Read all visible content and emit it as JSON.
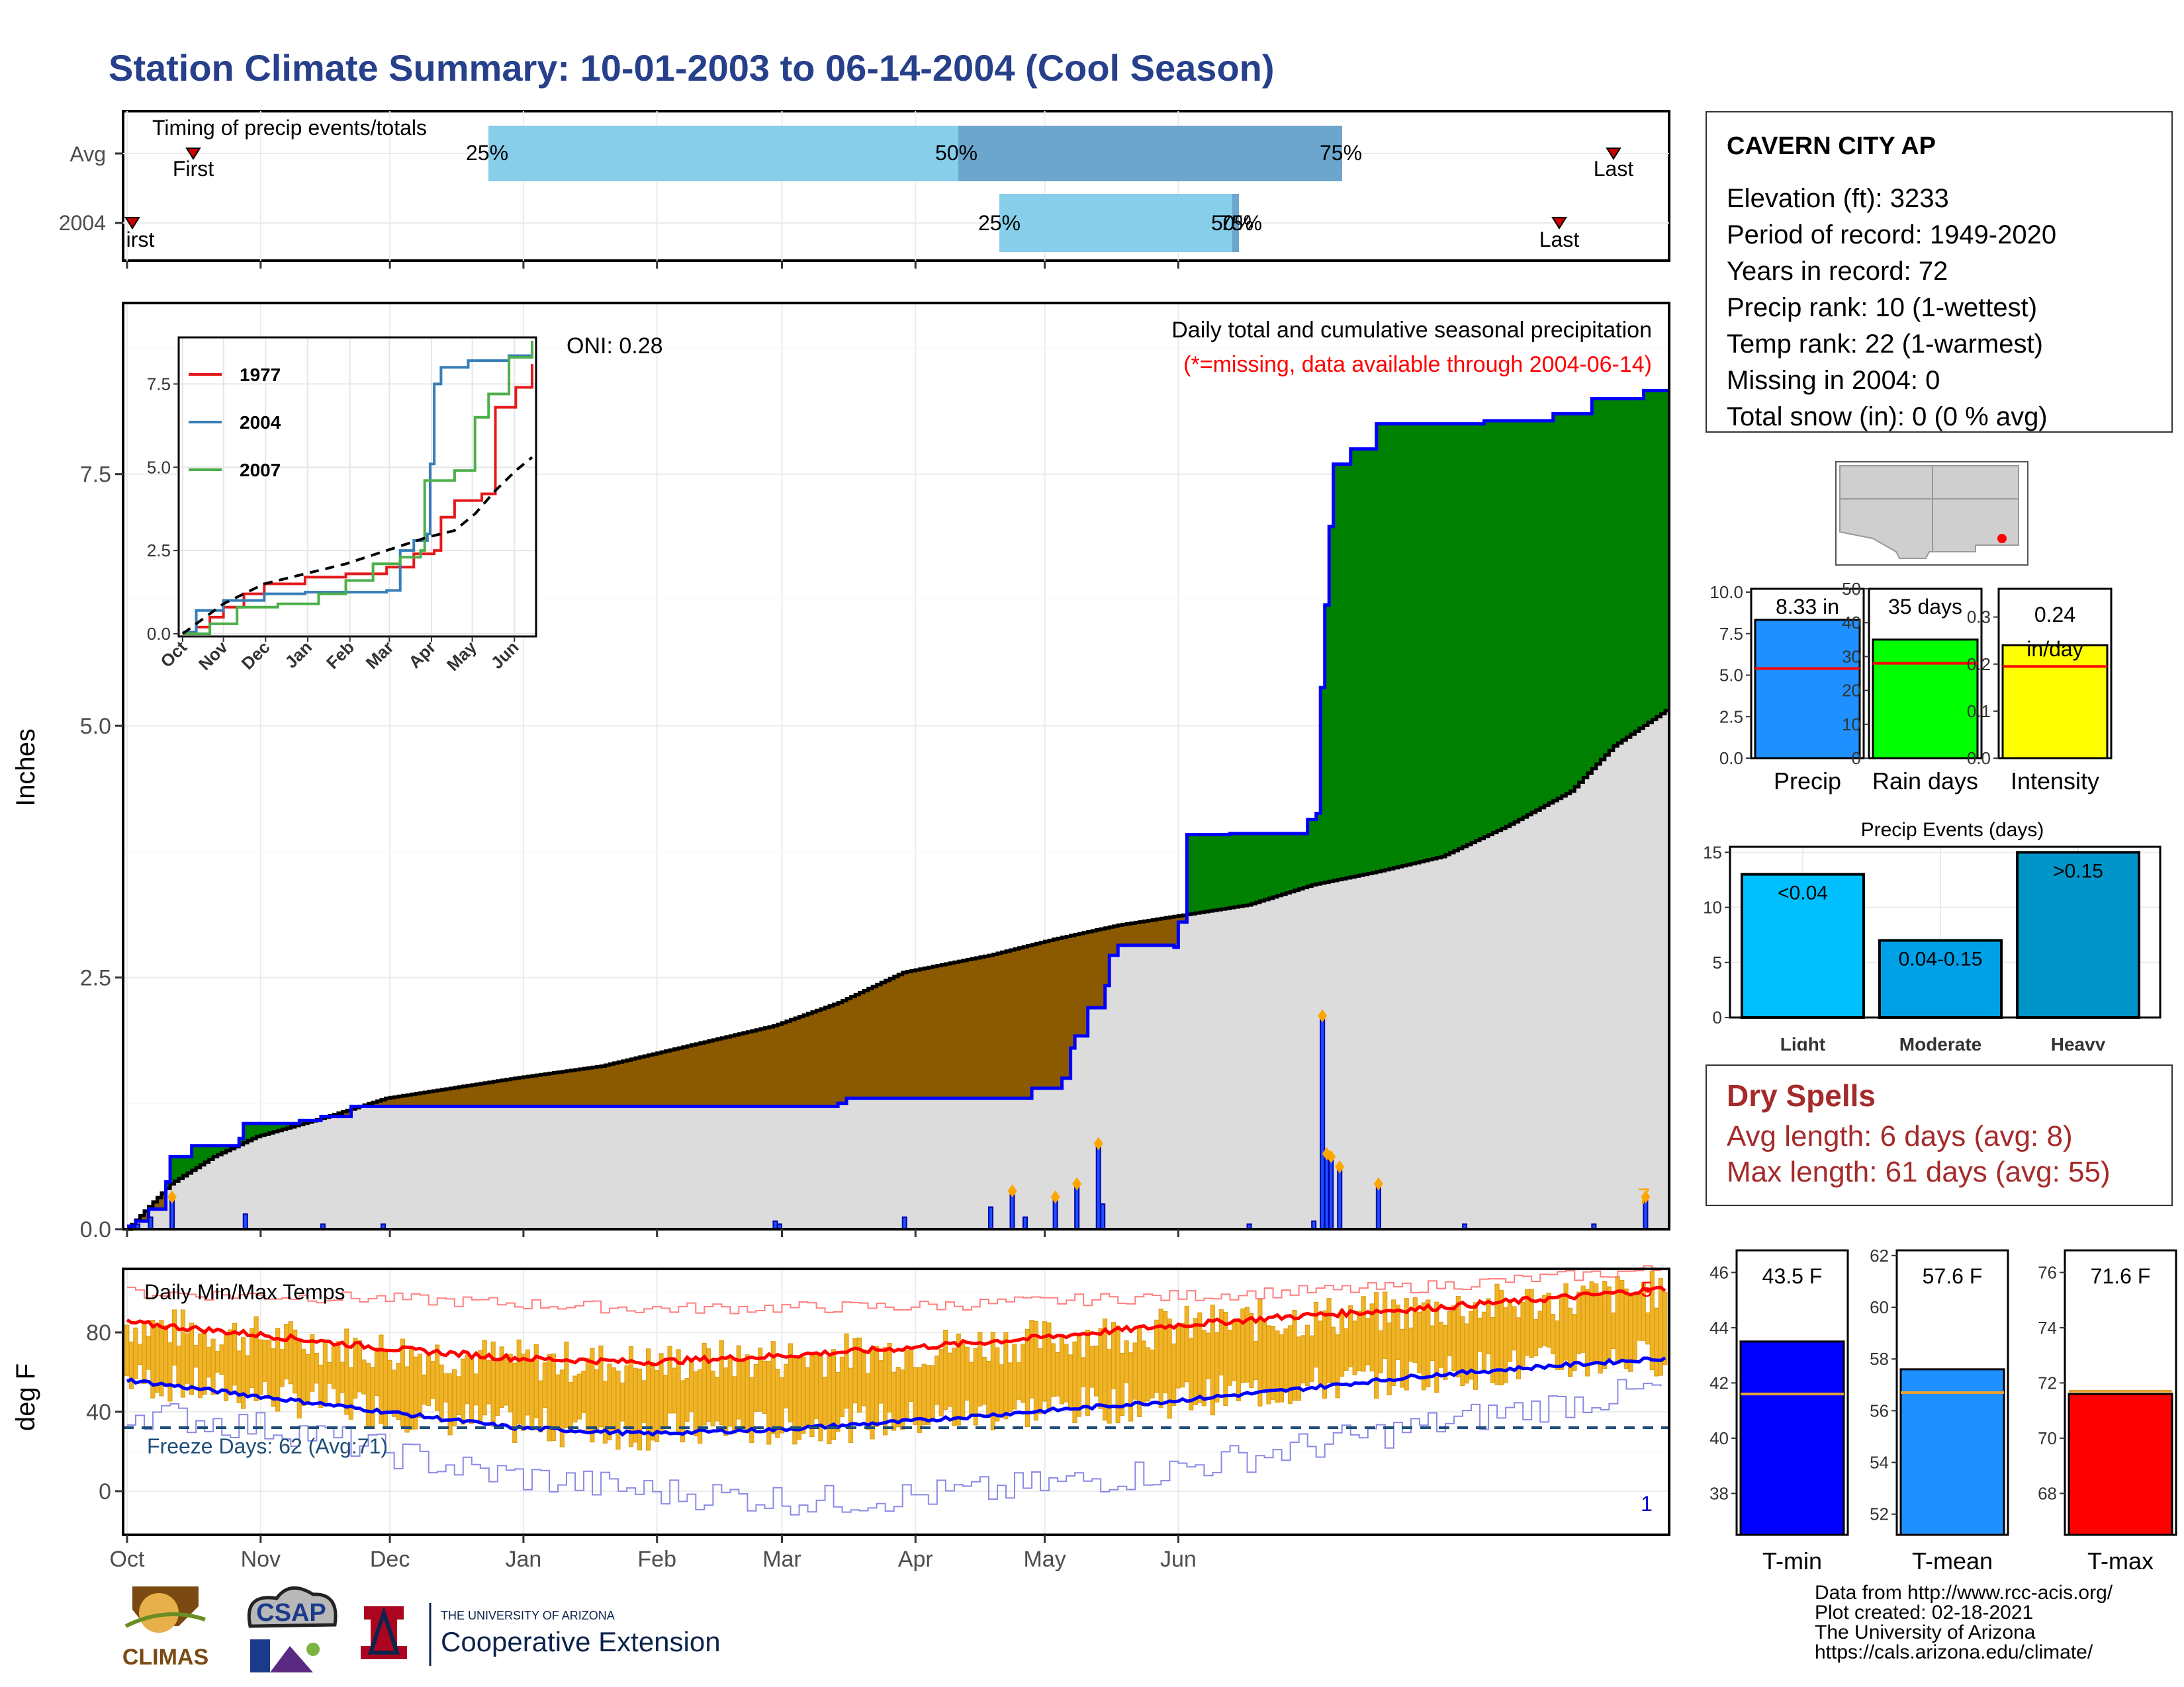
{
  "title": "Station Climate Summary: 10-01-2003 to 06-14-2004 (Cool Season)",
  "timing": {
    "label": "Timing of precip events/totals",
    "rows": [
      "Avg",
      "2004"
    ],
    "avg": {
      "p25": "25%",
      "p50": "50%",
      "p75": "75%",
      "first": "First",
      "last": "Last"
    },
    "y2004": {
      "p25": "25%",
      "p50": "50%",
      "p75": "75%",
      "first": "First",
      "last": "Last"
    }
  },
  "station": {
    "name": "CAVERN CITY AP",
    "lines": [
      "Elevation (ft): 3233",
      "Period of record: 1949-2020",
      "Years in record: 72",
      "Precip rank: 10 (1-wettest)",
      "Temp rank: 22 (1-warmest)",
      "Missing in 2004: 0",
      "Total snow (in): 0 (0 % avg)"
    ]
  },
  "precip_panel": {
    "ylabel": "Inches",
    "title": "Daily total and cumulative seasonal precipitation",
    "subtitle": "(*=missing, data available through 2004-06-14)",
    "oni": "ONI: 0.28",
    "count_label": "7",
    "months": [
      "Oct",
      "Nov",
      "Dec",
      "Jan",
      "Feb",
      "Mar",
      "Apr",
      "May",
      "Jun"
    ],
    "yticks": [
      "0.0",
      "2.5",
      "5.0",
      "7.5"
    ]
  },
  "inset": {
    "legend": [
      "1977",
      "2004",
      "2007"
    ],
    "months": [
      "Oct",
      "Nov",
      "Dec",
      "Jan",
      "Feb",
      "Mar",
      "Apr",
      "May",
      "Jun"
    ],
    "yticks": [
      "0.0",
      "2.5",
      "5.0",
      "7.5"
    ]
  },
  "temp_panel": {
    "ylabel": "deg F",
    "label": "Daily Min/Max Temps",
    "freeze": "Freeze Days: 62 (Avg:71)",
    "count_hi": "5",
    "count_lo": "1",
    "months": [
      "Oct",
      "Nov",
      "Dec",
      "Jan",
      "Feb",
      "Mar",
      "Apr",
      "May",
      "Jun"
    ],
    "yticks": [
      "0",
      "40",
      "80"
    ]
  },
  "bars_small": {
    "precip": {
      "label": "Precip",
      "value_text": "8.33 in",
      "yticks": [
        "0.0",
        "2.5",
        "5.0",
        "7.5",
        "10.0"
      ]
    },
    "raindays": {
      "label": "Rain days",
      "value_text": "35 days",
      "yticks": [
        "0",
        "10",
        "20",
        "30",
        "40",
        "50"
      ]
    },
    "intensity": {
      "label": "Intensity",
      "value_text": "0.24",
      "unit_text": "in/day",
      "yticks": [
        "0.0",
        "0.1",
        "0.2",
        "0.3"
      ]
    }
  },
  "events": {
    "title": "Precip Events (days)",
    "categories": [
      "Light",
      "Moderate",
      "Heavy"
    ],
    "bar_labels": [
      "<0.04",
      "0.04-0.15",
      ">0.15"
    ],
    "yticks": [
      "0",
      "5",
      "10",
      "15"
    ]
  },
  "dry_spells": {
    "title": "Dry Spells",
    "avg": "Avg length: 6 days (avg: 8)",
    "max": "Max length: 61 days (avg: 55)"
  },
  "temp_bars": {
    "tmin": {
      "label": "T-min",
      "value_text": "43.5 F",
      "yticks": [
        "38",
        "40",
        "42",
        "44",
        "46"
      ]
    },
    "tmean": {
      "label": "T-mean",
      "value_text": "57.6 F",
      "yticks": [
        "52",
        "54",
        "56",
        "58",
        "60",
        "62"
      ]
    },
    "tmax": {
      "label": "T-max",
      "value_text": "71.6 F",
      "yticks": [
        "68",
        "70",
        "72",
        "74",
        "76"
      ]
    }
  },
  "footer": {
    "lines": [
      "Data from http://www.rcc-acis.org/",
      "Plot created: 02-18-2021",
      "The University of Arizona",
      "https://cals.arizona.edu/climate/"
    ],
    "logo_climas": "CLIMAS",
    "logo_csap": "CSAP",
    "ua_small": "THE UNIVERSITY OF ARIZONA",
    "ua_big": "Cooperative Extension"
  },
  "chart_data": [
    {
      "type": "area",
      "name": "cumulative",
      "ylim": [
        0,
        9.2
      ],
      "x_unit": "days since Oct 1",
      "cum_2004": [
        [
          0,
          0.03
        ],
        [
          2,
          0.08
        ],
        [
          5,
          0.2
        ],
        [
          9,
          0.47
        ],
        [
          10,
          0.72
        ],
        [
          15,
          0.83
        ],
        [
          26,
          0.9
        ],
        [
          27,
          1.05
        ],
        [
          40,
          1.08
        ],
        [
          45,
          1.12
        ],
        [
          52,
          1.22
        ],
        [
          91,
          1.22
        ],
        [
          165,
          1.25
        ],
        [
          167,
          1.3
        ],
        [
          210,
          1.4
        ],
        [
          217,
          1.5
        ],
        [
          219,
          1.8
        ],
        [
          220,
          1.92
        ],
        [
          223,
          2.2
        ],
        [
          227,
          2.42
        ],
        [
          228,
          2.72
        ],
        [
          230,
          2.82
        ],
        [
          235,
          2.82
        ],
        [
          243,
          2.8
        ],
        [
          244,
          3.05
        ],
        [
          246,
          3.92
        ],
        [
          256,
          3.93
        ],
        [
          274,
          4.07
        ],
        [
          276,
          4.13
        ],
        [
          277,
          5.38
        ],
        [
          278,
          6.2
        ],
        [
          279,
          6.98
        ],
        [
          280,
          7.6
        ],
        [
          284,
          7.75
        ],
        [
          290,
          8.0
        ],
        [
          315,
          8.03
        ],
        [
          331,
          8.1
        ],
        [
          340,
          8.25
        ],
        [
          352,
          8.33
        ],
        [
          357,
          8.33
        ]
      ],
      "cum_avg": [
        [
          0,
          0.0
        ],
        [
          10,
          0.45
        ],
        [
          20,
          0.72
        ],
        [
          30,
          0.92
        ],
        [
          45,
          1.1
        ],
        [
          60,
          1.3
        ],
        [
          75,
          1.4
        ],
        [
          90,
          1.5
        ],
        [
          110,
          1.62
        ],
        [
          130,
          1.82
        ],
        [
          150,
          2.02
        ],
        [
          165,
          2.25
        ],
        [
          180,
          2.55
        ],
        [
          200,
          2.72
        ],
        [
          215,
          2.88
        ],
        [
          230,
          3.02
        ],
        [
          245,
          3.12
        ],
        [
          260,
          3.22
        ],
        [
          275,
          3.42
        ],
        [
          290,
          3.55
        ],
        [
          305,
          3.7
        ],
        [
          320,
          4.0
        ],
        [
          335,
          4.35
        ],
        [
          345,
          4.8
        ],
        [
          357,
          5.15
        ]
      ],
      "daily_bars": [
        [
          2,
          0.05
        ],
        [
          5,
          0.12
        ],
        [
          10,
          0.32
        ],
        [
          27,
          0.15
        ],
        [
          45,
          0.05
        ],
        [
          59,
          0.05
        ],
        [
          150,
          0.08
        ],
        [
          151,
          0.05
        ],
        [
          180,
          0.12
        ],
        [
          200,
          0.22
        ],
        [
          205,
          0.38
        ],
        [
          208,
          0.12
        ],
        [
          215,
          0.32
        ],
        [
          220,
          0.45
        ],
        [
          225,
          0.85
        ],
        [
          226,
          0.25
        ],
        [
          260,
          0.05
        ],
        [
          275,
          0.08
        ],
        [
          277,
          2.12
        ],
        [
          278,
          0.75
        ],
        [
          279,
          0.72
        ],
        [
          281,
          0.62
        ],
        [
          290,
          0.45
        ],
        [
          310,
          0.05
        ],
        [
          340,
          0.05
        ],
        [
          352,
          0.32
        ]
      ]
    },
    {
      "type": "line",
      "name": "inset-cumulative",
      "xlim": [
        0,
        257
      ],
      "ylim": [
        0,
        8.7
      ],
      "series": [
        {
          "name": "1977",
          "color": "#e41a1c",
          "points": [
            [
              0,
              0
            ],
            [
              10,
              0.2
            ],
            [
              20,
              0.5
            ],
            [
              30,
              0.8
            ],
            [
              45,
              1.2
            ],
            [
              60,
              1.5
            ],
            [
              90,
              1.7
            ],
            [
              120,
              1.8
            ],
            [
              150,
              2.0
            ],
            [
              170,
              2.4
            ],
            [
              185,
              2.5
            ],
            [
              190,
              3.5
            ],
            [
              200,
              4.0
            ],
            [
              220,
              4.2
            ],
            [
              230,
              6.8
            ],
            [
              245,
              7.4
            ],
            [
              257,
              8.1
            ]
          ]
        },
        {
          "name": "2004",
          "color": "#377eb8",
          "points": [
            [
              0,
              0.05
            ],
            [
              10,
              0.7
            ],
            [
              30,
              1.0
            ],
            [
              60,
              1.2
            ],
            [
              90,
              1.25
            ],
            [
              150,
              1.3
            ],
            [
              160,
              2.5
            ],
            [
              170,
              2.8
            ],
            [
              180,
              3.0
            ],
            [
              182,
              5.1
            ],
            [
              185,
              7.5
            ],
            [
              190,
              8.0
            ],
            [
              210,
              8.2
            ],
            [
              240,
              8.35
            ],
            [
              257,
              8.5
            ]
          ]
        },
        {
          "name": "2007",
          "color": "#4daf4a",
          "points": [
            [
              0,
              0
            ],
            [
              20,
              0.3
            ],
            [
              40,
              0.8
            ],
            [
              70,
              0.9
            ],
            [
              100,
              1.2
            ],
            [
              120,
              1.6
            ],
            [
              140,
              2.1
            ],
            [
              160,
              2.3
            ],
            [
              175,
              2.5
            ],
            [
              178,
              4.6
            ],
            [
              200,
              4.9
            ],
            [
              215,
              6.5
            ],
            [
              225,
              7.2
            ],
            [
              240,
              8.3
            ],
            [
              257,
              8.8
            ]
          ]
        },
        {
          "name": "avg",
          "color": "#000000",
          "dashed": true,
          "points": [
            [
              0,
              0
            ],
            [
              30,
              0.9
            ],
            [
              60,
              1.5
            ],
            [
              90,
              1.8
            ],
            [
              120,
              2.1
            ],
            [
              150,
              2.5
            ],
            [
              180,
              2.9
            ],
            [
              200,
              3.1
            ],
            [
              215,
              3.6
            ],
            [
              230,
              4.3
            ],
            [
              245,
              4.9
            ],
            [
              257,
              5.3
            ]
          ]
        }
      ]
    },
    {
      "type": "line",
      "name": "temperatures",
      "ylim": [
        -22,
        112
      ],
      "freeze_line": 32,
      "record_high": [
        [
          0,
          100
        ],
        [
          60,
          97
        ],
        [
          120,
          92
        ],
        [
          180,
          93
        ],
        [
          240,
          98
        ],
        [
          300,
          103
        ],
        [
          357,
          112
        ]
      ],
      "normal_high": [
        [
          0,
          85
        ],
        [
          30,
          79
        ],
        [
          60,
          72
        ],
        [
          90,
          67
        ],
        [
          120,
          65
        ],
        [
          150,
          68
        ],
        [
          180,
          72
        ],
        [
          210,
          77
        ],
        [
          240,
          83
        ],
        [
          270,
          88
        ],
        [
          300,
          92
        ],
        [
          330,
          97
        ],
        [
          357,
          102
        ]
      ],
      "normal_low": [
        [
          0,
          56
        ],
        [
          30,
          48
        ],
        [
          60,
          40
        ],
        [
          90,
          32
        ],
        [
          120,
          29
        ],
        [
          150,
          31
        ],
        [
          180,
          35
        ],
        [
          210,
          40
        ],
        [
          240,
          45
        ],
        [
          270,
          51
        ],
        [
          300,
          58
        ],
        [
          330,
          63
        ],
        [
          357,
          67
        ]
      ],
      "record_low": [
        [
          0,
          40
        ],
        [
          40,
          30
        ],
        [
          80,
          10
        ],
        [
          120,
          0
        ],
        [
          160,
          -5
        ],
        [
          200,
          0
        ],
        [
          240,
          10
        ],
        [
          280,
          25
        ],
        [
          320,
          40
        ],
        [
          357,
          52
        ]
      ]
    },
    {
      "type": "bar",
      "name": "Precip",
      "categories": [
        "Precip"
      ],
      "values": [
        8.33
      ],
      "avg": 5.4,
      "ylim": [
        0,
        10.2
      ]
    },
    {
      "type": "bar",
      "name": "Rain days",
      "categories": [
        "Rain days"
      ],
      "values": [
        35
      ],
      "avg": 28,
      "ylim": [
        0,
        50
      ]
    },
    {
      "type": "bar",
      "name": "Intensity",
      "categories": [
        "Intensity"
      ],
      "values": [
        0.24
      ],
      "avg": 0.195,
      "ylim": [
        0,
        0.36
      ]
    },
    {
      "type": "bar",
      "name": "Precip Events (days)",
      "categories": [
        "Light",
        "Moderate",
        "Heavy"
      ],
      "values": [
        13,
        7,
        15
      ],
      "ylim": [
        0,
        15.5
      ]
    },
    {
      "type": "bar",
      "name": "T-min",
      "categories": [
        "T-min"
      ],
      "values": [
        43.5
      ],
      "avg": 41.6,
      "ylim": [
        36.5,
        46.8
      ]
    },
    {
      "type": "bar",
      "name": "T-mean",
      "categories": [
        "T-mean"
      ],
      "values": [
        57.6
      ],
      "avg": 56.7,
      "ylim": [
        51.2,
        62.2
      ]
    },
    {
      "type": "bar",
      "name": "T-max",
      "categories": [
        "T-max"
      ],
      "values": [
        71.6
      ],
      "avg": 71.7,
      "ylim": [
        66.5,
        76.8
      ]
    }
  ]
}
